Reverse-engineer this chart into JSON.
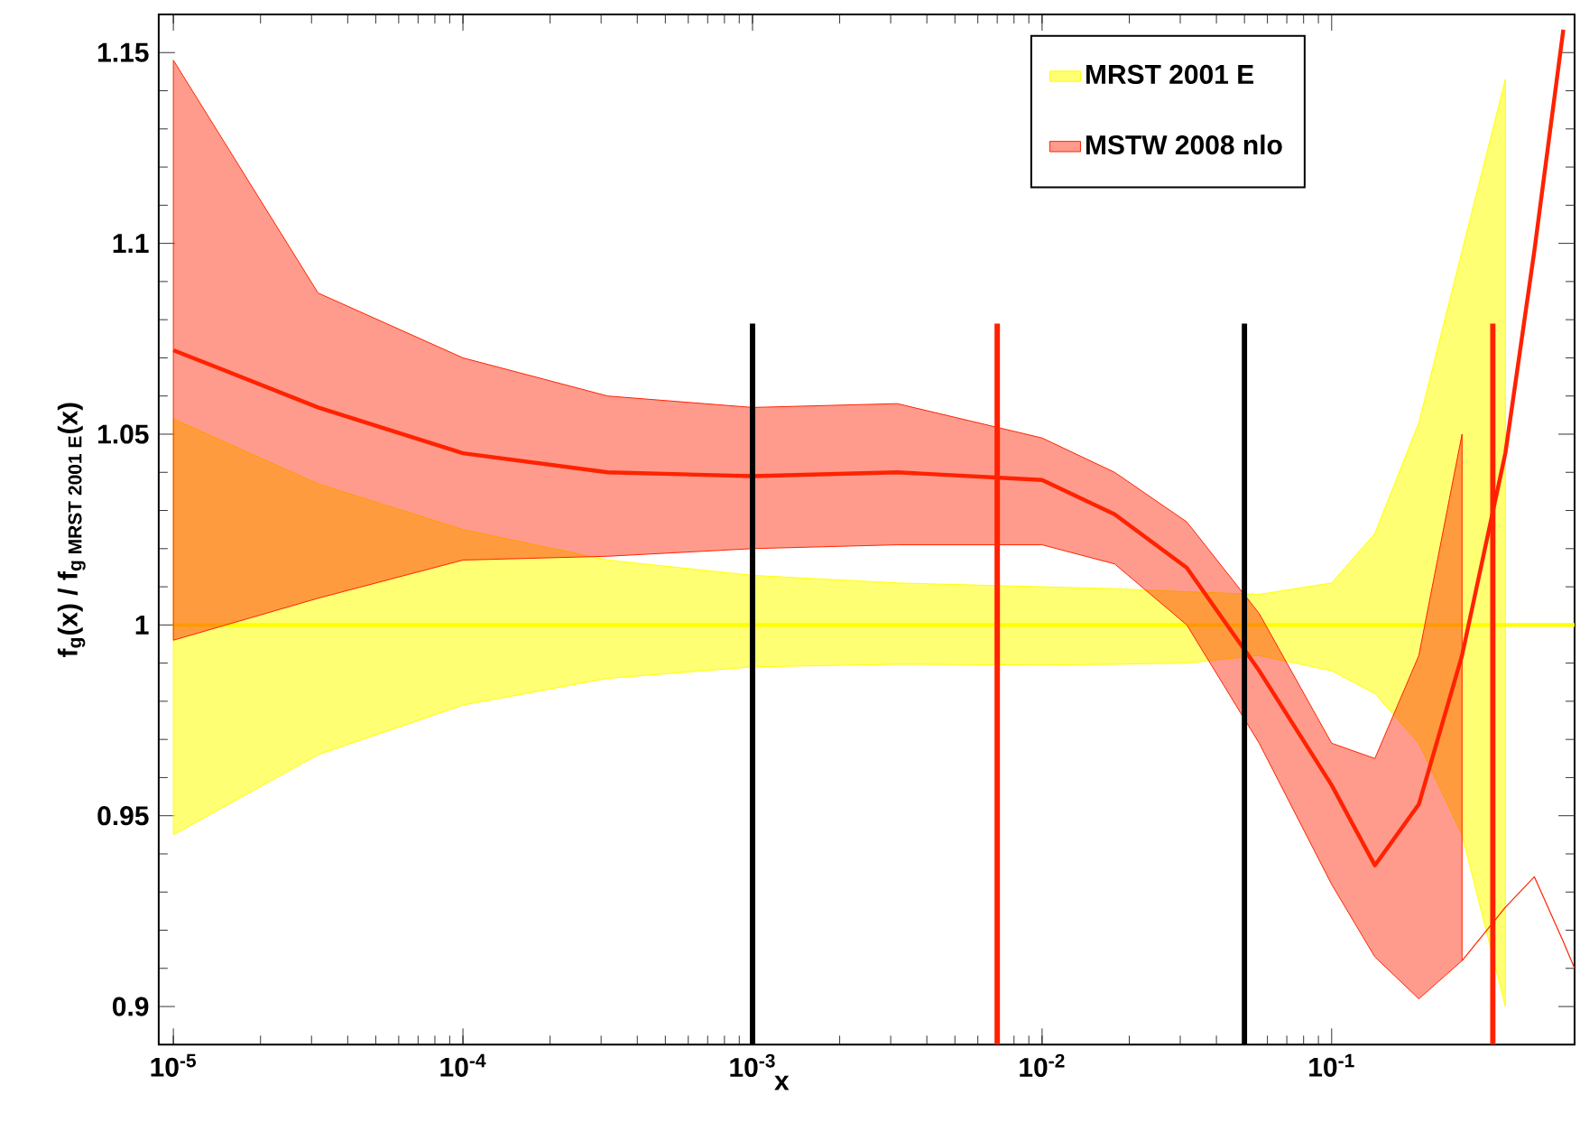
{
  "chart_data": {
    "type": "line",
    "xlabel": "x",
    "ylabel": "f$_{g}$(x) / f$_{g MRST 2001 E}$(x)",
    "log": "x",
    "xlim": [
      8.9e-06,
      0.69
    ],
    "ylim": [
      0.89,
      1.16
    ],
    "xticks": [
      {
        "value": 1e-05,
        "label": "10$^{-5}$"
      },
      {
        "value": 0.0001,
        "label": "10$^{-4}$"
      },
      {
        "value": 0.001,
        "label": "10$^{-3}$"
      },
      {
        "value": 0.01,
        "label": "10$^{-2}$"
      },
      {
        "value": 0.1,
        "label": "10$^{-1}$"
      }
    ],
    "yticks": [
      0.9,
      0.95,
      1,
      1.05,
      1.1,
      1.15
    ],
    "grid": false,
    "legend": "top right",
    "series": [
      {
        "name": "MRST 2001 E",
        "color": "#ffff00",
        "x": [
          1e-05,
          3.16e-05,
          0.0001,
          0.000316,
          0.001,
          0.00316,
          0.01,
          0.0178,
          0.0316,
          0.0562,
          0.1,
          0.141,
          0.2,
          0.282,
          0.398,
          0.501,
          0.631,
          0.69
        ],
        "values": [
          1,
          1,
          1,
          1,
          1,
          1,
          1,
          1,
          1,
          1,
          1,
          1,
          1,
          1,
          1,
          1,
          1,
          1
        ],
        "upper": [
          1.054,
          1.037,
          1.025,
          1.017,
          1.013,
          1.011,
          1.01,
          1.0095,
          1.0087,
          1.008,
          1.011,
          1.024,
          1.053,
          1.098,
          1.143,
          null,
          null,
          null
        ],
        "lower": [
          0.945,
          0.966,
          0.979,
          0.986,
          0.989,
          0.9897,
          0.9895,
          0.9897,
          0.99,
          0.992,
          0.988,
          0.982,
          0.969,
          0.945,
          0.9,
          null,
          null,
          null
        ]
      },
      {
        "name": "MSTW 2008 nlo",
        "color": "#ff2200",
        "x": [
          1e-05,
          3.16e-05,
          0.0001,
          0.000316,
          0.001,
          0.00316,
          0.01,
          0.0178,
          0.0316,
          0.0562,
          0.1,
          0.141,
          0.2,
          0.282,
          0.398,
          0.501,
          0.631
        ],
        "values": [
          1.072,
          1.057,
          1.045,
          1.04,
          1.039,
          1.04,
          1.038,
          1.029,
          1.015,
          0.988,
          0.958,
          0.937,
          0.953,
          0.992,
          1.045,
          1.098,
          1.156
        ],
        "upper": [
          1.148,
          1.087,
          1.07,
          1.06,
          1.057,
          1.058,
          1.049,
          1.04,
          1.027,
          1.003,
          0.969,
          0.965,
          0.992,
          1.05,
          null,
          null,
          null
        ],
        "lower": [
          0.996,
          1.007,
          1.017,
          1.018,
          1.02,
          1.021,
          1.021,
          1.016,
          1.0,
          0.969,
          0.932,
          0.913,
          0.902,
          0.912,
          null,
          null,
          null
        ]
      },
      {
        "type": "line",
        "color": "#ff2200",
        "x": [
          0.282,
          0.398,
          0.501,
          0.631,
          0.69
        ],
        "values": [
          0.912,
          0.926,
          0.934,
          0.917,
          0.91
        ]
      }
    ],
    "ref_lines": [
      {
        "axis": "x",
        "value": 0.001,
        "color": "#000000"
      },
      {
        "axis": "x",
        "value": 0.007,
        "color": "#ff2200"
      },
      {
        "axis": "x",
        "value": 0.05,
        "color": "#000000"
      },
      {
        "axis": "x",
        "value": 0.36,
        "color": "#ff2200"
      }
    ]
  }
}
